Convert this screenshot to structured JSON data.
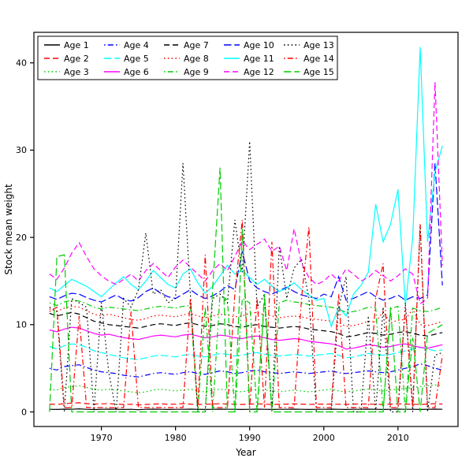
{
  "chart_data": {
    "type": "line",
    "title": "",
    "xlabel": "Year",
    "ylabel": "Stock mean weight",
    "xlim": [
      1960.9,
      2018.1
    ],
    "ylim": [
      -1.67,
      43.5
    ],
    "xticks": [
      1970,
      1980,
      1990,
      2000,
      2010
    ],
    "yticks": [
      0,
      10,
      20,
      30,
      40
    ],
    "grid": false,
    "legend_position": "top-left",
    "legend_ncol": 5,
    "x": [
      1963,
      1964,
      1965,
      1966,
      1967,
      1968,
      1969,
      1970,
      1971,
      1972,
      1973,
      1974,
      1975,
      1976,
      1977,
      1978,
      1979,
      1980,
      1981,
      1982,
      1983,
      1984,
      1985,
      1986,
      1987,
      1988,
      1989,
      1990,
      1991,
      1992,
      1993,
      1994,
      1995,
      1996,
      1997,
      1998,
      1999,
      2000,
      2001,
      2002,
      2003,
      2004,
      2005,
      2006,
      2007,
      2008,
      2009,
      2010,
      2011,
      2012,
      2013,
      2014,
      2015,
      2016
    ],
    "series": [
      {
        "name": "Age 1",
        "color": "#000000",
        "linetype": "solid",
        "values": [
          0.3,
          0.28,
          0.32,
          0.3,
          0.35,
          0.3,
          0.27,
          0.3,
          0.32,
          0.3,
          0.28,
          0.3,
          0.25,
          0.3,
          0.32,
          0.3,
          0.28,
          0.3,
          0.3,
          0.32,
          0.3,
          0.28,
          0.3,
          0.32,
          0.3,
          0.3,
          0.28,
          0.3,
          0.32,
          0.3,
          0.28,
          0.3,
          0.3,
          0.32,
          0.3,
          0.28,
          0.3,
          0.3,
          0.32,
          0.3,
          0.28,
          0.3,
          0.3,
          0.32,
          0.3,
          0.28,
          0.3,
          0.32,
          0.3,
          0.3,
          0.28,
          0.3,
          0.32,
          0.3
        ]
      },
      {
        "name": "Age 2",
        "color": "#FF0000",
        "linetype": "dashed",
        "values": [
          0.9,
          0.85,
          0.95,
          1.0,
          1.05,
          0.95,
          0.9,
          0.92,
          0.95,
          0.9,
          0.85,
          0.88,
          0.8,
          0.85,
          0.9,
          0.92,
          0.88,
          0.9,
          0.95,
          0.9,
          0.85,
          0.88,
          0.9,
          0.95,
          0.9,
          0.88,
          0.85,
          0.9,
          0.92,
          0.9,
          0.85,
          0.88,
          0.9,
          0.92,
          0.9,
          0.85,
          0.88,
          0.9,
          0.9,
          0.88,
          0.85,
          0.9,
          0.92,
          0.9,
          0.88,
          0.85,
          0.9,
          0.92,
          0.9,
          0.88,
          0.85,
          0.9,
          0.95,
          0.9
        ]
      },
      {
        "name": "Age 3",
        "color": "#00CD00",
        "linetype": "dotted",
        "values": [
          2.6,
          2.5,
          2.8,
          2.9,
          3.0,
          2.8,
          2.6,
          2.5,
          2.6,
          2.5,
          2.4,
          2.3,
          2.2,
          2.3,
          2.5,
          2.6,
          2.5,
          2.4,
          2.5,
          2.6,
          2.4,
          2.3,
          2.5,
          2.6,
          2.5,
          2.4,
          2.3,
          2.5,
          2.6,
          2.5,
          2.4,
          2.3,
          2.4,
          2.5,
          2.4,
          2.3,
          2.4,
          2.5,
          2.6,
          2.4,
          2.3,
          2.4,
          2.5,
          2.6,
          2.5,
          2.4,
          2.5,
          2.6,
          2.7,
          2.8,
          2.9,
          3.0,
          3.1,
          3.0
        ]
      },
      {
        "name": "Age 4",
        "color": "#0000FF",
        "linetype": "dotdash",
        "values": [
          5.0,
          4.8,
          5.2,
          5.3,
          5.4,
          5.1,
          4.8,
          4.6,
          4.5,
          4.4,
          4.2,
          4.1,
          4.0,
          4.2,
          4.4,
          4.5,
          4.4,
          4.3,
          4.5,
          4.6,
          4.4,
          4.3,
          4.5,
          4.7,
          4.6,
          4.4,
          4.5,
          4.7,
          4.8,
          4.6,
          4.5,
          4.4,
          4.5,
          4.6,
          4.5,
          4.4,
          4.5,
          4.6,
          4.7,
          4.5,
          4.4,
          4.5,
          4.6,
          4.7,
          4.6,
          4.5,
          4.6,
          4.8,
          5.0,
          5.2,
          5.5,
          5.3,
          5.0,
          4.8
        ]
      },
      {
        "name": "Age 5",
        "color": "#00FFFF",
        "linetype": "longdash",
        "values": [
          7.5,
          7.2,
          7.6,
          7.8,
          7.7,
          7.4,
          7.0,
          6.8,
          6.6,
          6.4,
          6.2,
          6.1,
          6.0,
          6.2,
          6.4,
          6.5,
          6.4,
          6.3,
          6.5,
          6.6,
          6.4,
          6.3,
          6.5,
          6.7,
          6.6,
          6.4,
          6.5,
          6.7,
          6.8,
          6.6,
          6.5,
          6.4,
          6.5,
          6.6,
          6.5,
          6.4,
          6.5,
          6.6,
          6.7,
          6.5,
          6.2,
          6.3,
          6.5,
          6.7,
          6.6,
          6.5,
          6.6,
          6.8,
          7.0,
          7.2,
          7.4,
          7.2,
          7.0,
          7.1
        ]
      },
      {
        "name": "Age 6",
        "color": "#FF00FF",
        "linetype": "solid",
        "values": [
          9.4,
          9.2,
          9.5,
          9.7,
          9.6,
          9.3,
          9.0,
          8.8,
          8.9,
          8.7,
          8.5,
          8.4,
          8.3,
          8.5,
          8.7,
          8.8,
          8.7,
          8.6,
          8.8,
          8.9,
          8.7,
          8.5,
          8.6,
          8.8,
          8.7,
          8.5,
          8.4,
          8.6,
          8.7,
          8.5,
          8.3,
          8.2,
          8.3,
          8.4,
          8.3,
          8.1,
          8.0,
          7.9,
          7.8,
          7.6,
          7.2,
          7.3,
          7.5,
          7.7,
          7.6,
          7.4,
          7.5,
          7.7,
          7.8,
          7.6,
          7.4,
          7.3,
          7.5,
          7.7
        ]
      },
      {
        "name": "Age 7",
        "color": "#000000",
        "linetype": "dashed",
        "values": [
          11.3,
          11.0,
          11.2,
          11.4,
          11.2,
          10.8,
          10.4,
          10.2,
          10.0,
          9.9,
          9.8,
          9.7,
          9.6,
          9.8,
          10.0,
          10.1,
          10.0,
          9.9,
          10.1,
          10.2,
          10.0,
          9.8,
          9.9,
          10.1,
          10.0,
          9.8,
          9.7,
          9.9,
          10.0,
          9.8,
          9.7,
          9.6,
          9.7,
          9.8,
          9.7,
          9.5,
          9.4,
          9.3,
          9.2,
          9.0,
          8.6,
          8.7,
          8.9,
          9.1,
          9.0,
          8.8,
          8.9,
          9.1,
          9.2,
          9.0,
          8.8,
          8.7,
          8.9,
          9.1
        ]
      },
      {
        "name": "Age 8",
        "color": "#FF0000",
        "linetype": "dotted",
        "values": [
          11.8,
          11.5,
          11.9,
          12.1,
          12.0,
          11.6,
          11.2,
          11.0,
          11.2,
          11.0,
          10.8,
          10.6,
          10.5,
          10.7,
          11.0,
          11.1,
          11.0,
          10.9,
          11.1,
          11.3,
          11.0,
          10.8,
          11.0,
          11.2,
          11.1,
          10.9,
          11.0,
          11.3,
          11.4,
          11.1,
          11.0,
          10.8,
          10.9,
          11.0,
          10.9,
          10.7,
          10.6,
          10.5,
          10.4,
          10.2,
          9.8,
          9.9,
          10.1,
          10.4,
          10.3,
          11.5,
          10.2,
          10.5,
          10.6,
          11.8,
          10.0,
          9.9,
          10.1,
          10.4
        ]
      },
      {
        "name": "Age 9",
        "color": "#00CD00",
        "linetype": "dotdash",
        "values": [
          12.5,
          12.2,
          12.6,
          12.8,
          12.7,
          12.4,
          12.0,
          11.8,
          12.0,
          11.9,
          11.8,
          11.7,
          11.6,
          11.8,
          12.0,
          12.1,
          12.0,
          11.9,
          12.1,
          12.2,
          0,
          12.0,
          0,
          13.5,
          12.8,
          0,
          13.0,
          12.5,
          0,
          12.8,
          0,
          12.5,
          12.8,
          12.6,
          12.5,
          12.3,
          12.2,
          12.1,
          12.0,
          11.8,
          11.4,
          11.5,
          11.7,
          12.0,
          11.9,
          0,
          11.8,
          12.1,
          0,
          11.9,
          11.6,
          11.5,
          11.7,
          12.0
        ]
      },
      {
        "name": "Age 10",
        "color": "#0000FF",
        "linetype": "longdash",
        "values": [
          13.2,
          12.9,
          13.3,
          13.6,
          13.5,
          13.1,
          12.8,
          12.6,
          13.0,
          13.4,
          12.9,
          12.7,
          13.1,
          13.8,
          14.2,
          13.6,
          13.2,
          13.0,
          13.5,
          14.0,
          13.4,
          13.0,
          13.3,
          13.8,
          14.5,
          14.0,
          18.4,
          15.0,
          14.2,
          13.8,
          13.5,
          13.9,
          14.3,
          13.8,
          13.4,
          13.2,
          13.0,
          13.5,
          13.2,
          15.5,
          12.8,
          13.0,
          13.4,
          13.8,
          13.2,
          12.8,
          13.0,
          13.4,
          12.8,
          13.2,
          13.0,
          13.4,
          28.5,
          14.5
        ]
      },
      {
        "name": "Age 11",
        "color": "#00FFFF",
        "linetype": "solid",
        "values": [
          14.2,
          13.8,
          14.5,
          15.2,
          14.8,
          14.4,
          13.8,
          13.2,
          14.0,
          14.8,
          15.5,
          14.6,
          14.0,
          15.0,
          16.2,
          15.4,
          14.6,
          14.2,
          15.8,
          16.4,
          14.8,
          13.6,
          14.4,
          15.6,
          16.8,
          15.8,
          16.2,
          15.4,
          14.6,
          15.2,
          14.4,
          13.8,
          14.2,
          14.8,
          14.0,
          13.4,
          12.8,
          13.0,
          9.8,
          12.0,
          11.0,
          13.5,
          14.5,
          16.0,
          23.8,
          19.5,
          21.5,
          25.5,
          12.2,
          20.0,
          41.8,
          19.5,
          27.5,
          30.5
        ]
      },
      {
        "name": "Age 12",
        "color": "#FF00FF",
        "linetype": "dashed",
        "values": [
          15.8,
          15.2,
          16.5,
          18.2,
          19.4,
          17.8,
          16.4,
          15.6,
          15.0,
          14.6,
          15.2,
          15.8,
          15.0,
          16.2,
          17.0,
          16.2,
          15.4,
          16.6,
          17.4,
          16.6,
          15.8,
          15.0,
          16.2,
          17.0,
          16.2,
          17.8,
          19.6,
          18.6,
          19.2,
          19.8,
          18.4,
          19.0,
          16.2,
          21.0,
          17.0,
          15.4,
          14.6,
          15.0,
          15.8,
          15.0,
          16.4,
          15.8,
          15.0,
          15.4,
          16.2,
          15.6,
          15.0,
          15.6,
          16.4,
          15.8,
          12.4,
          13.0,
          37.8,
          16.8
        ]
      },
      {
        "name": "Age 13",
        "color": "#000000",
        "linetype": "dotted",
        "values": [
          12.0,
          11.5,
          0,
          13.0,
          12.5,
          12.0,
          0,
          12.5,
          4.5,
          0,
          13.0,
          12.0,
          14.0,
          20.5,
          13.5,
          14.0,
          12.5,
          13.0,
          28.5,
          13.5,
          0,
          0,
          13.0,
          13.5,
          12.5,
          22.0,
          16.0,
          31.0,
          12.0,
          13.5,
          0,
          19.0,
          13.0,
          16.5,
          17.5,
          13.0,
          0,
          0,
          0,
          12.0,
          15.5,
          0,
          0,
          11.0,
          0,
          12.0,
          0,
          0,
          12.5,
          0,
          21.5,
          0,
          6.5,
          6.8
        ]
      },
      {
        "name": "Age 14",
        "color": "#FF0000",
        "linetype": "dotdash",
        "values": [
          11.5,
          12.0,
          0.5,
          0.5,
          11.0,
          0.5,
          0.5,
          0.5,
          0.5,
          0.5,
          0.5,
          11.5,
          0.5,
          0.5,
          0.5,
          0.5,
          0.5,
          0.5,
          0.5,
          13.0,
          0.5,
          18.0,
          0.5,
          0.5,
          0.5,
          13.5,
          22.0,
          0.5,
          13.0,
          0.5,
          19.5,
          0.5,
          0.5,
          0.5,
          13.0,
          21.2,
          0.5,
          0.5,
          0.5,
          13.5,
          0.5,
          0.5,
          0.5,
          0.5,
          13.0,
          17.0,
          0.5,
          0.5,
          12.0,
          0.5,
          21.5,
          0.5,
          0.5,
          6.5
        ]
      },
      {
        "name": "Age 15",
        "color": "#00CD00",
        "linetype": "longdash",
        "values": [
          0,
          17.8,
          18.0,
          0,
          0,
          0,
          0,
          0,
          0,
          0,
          0,
          0,
          0,
          0,
          0,
          0,
          0,
          0,
          0,
          0,
          0,
          0,
          14.0,
          28.0,
          0,
          0,
          21.0,
          0,
          0,
          13.5,
          0,
          0,
          0,
          0,
          0,
          0,
          0,
          0,
          0,
          0,
          0,
          0,
          0,
          0,
          0,
          0,
          12.0,
          0,
          0,
          8.5,
          0,
          9.0,
          9.5,
          10.0
        ]
      }
    ]
  }
}
